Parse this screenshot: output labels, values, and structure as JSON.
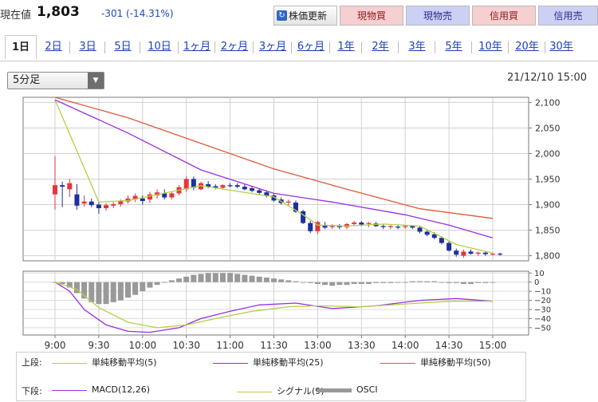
{
  "header": {
    "price_label": "現在値",
    "price": "1,803",
    "change": "-301 (-14.31%)"
  },
  "buttons": {
    "refresh": "株価更新",
    "spot_buy": "現物買",
    "spot_sell": "現物売",
    "margin_buy": "信用買",
    "margin_sell": "信用売"
  },
  "tabs": [
    "1日",
    "2日",
    "3日",
    "5日",
    "10日",
    "1ヶ月",
    "2ヶ月",
    "3ヶ月",
    "6ヶ月",
    "1年",
    "2年",
    "3年",
    "5年",
    "10年",
    "20年",
    "30年"
  ],
  "active_tab": "1日",
  "interval_select": {
    "value": "5分足"
  },
  "datetime": "21/12/10 15:00",
  "legend": {
    "upper_title": "上段:",
    "lower_title": "下段:",
    "upper_items": [
      "単純移動平均(5)",
      "単純移動平均(25)",
      "単純移動平均(50)"
    ],
    "lower_items": [
      "MACD(12,26)",
      "シグナル(9)",
      "OSCI"
    ]
  },
  "colors": {
    "sma5": "#b5d04a",
    "sma25": "#9a2fe0",
    "sma50": "#e05a3a",
    "up": "#e4353f",
    "down": "#1d2f9e",
    "osci": "#999999",
    "macd": "#9a2fe0",
    "signal": "#b5d04a",
    "btn_buy": "#f6cfd1",
    "btn_sell": "#ccd0f4"
  },
  "chart_data": [
    {
      "type": "candlestick",
      "x_ticks": [
        "9:00",
        "9:30",
        "10:00",
        "10:30",
        "11:00",
        "11:30",
        "13:00",
        "13:30",
        "14:00",
        "14:30",
        "15:00"
      ],
      "y_ticks": [
        "2,100",
        "2,050",
        "2,000",
        "1,950",
        "1,900",
        "1,850",
        "1,800"
      ],
      "ylim": [
        1790,
        2110
      ],
      "candles": [
        {
          "o": 1920,
          "h": 1995,
          "l": 1890,
          "c": 1938
        },
        {
          "o": 1938,
          "h": 1945,
          "l": 1895,
          "c": 1935
        },
        {
          "o": 1930,
          "h": 1950,
          "l": 1915,
          "c": 1942
        },
        {
          "o": 1920,
          "h": 1940,
          "l": 1890,
          "c": 1898
        },
        {
          "o": 1902,
          "h": 1918,
          "l": 1896,
          "c": 1906
        },
        {
          "o": 1906,
          "h": 1912,
          "l": 1895,
          "c": 1899
        },
        {
          "o": 1900,
          "h": 1906,
          "l": 1882,
          "c": 1893
        },
        {
          "o": 1893,
          "h": 1903,
          "l": 1888,
          "c": 1899
        },
        {
          "o": 1898,
          "h": 1905,
          "l": 1893,
          "c": 1901
        },
        {
          "o": 1901,
          "h": 1910,
          "l": 1896,
          "c": 1907
        },
        {
          "o": 1906,
          "h": 1918,
          "l": 1902,
          "c": 1912
        },
        {
          "o": 1910,
          "h": 1922,
          "l": 1905,
          "c": 1917
        },
        {
          "o": 1912,
          "h": 1918,
          "l": 1900,
          "c": 1907
        },
        {
          "o": 1910,
          "h": 1925,
          "l": 1904,
          "c": 1920
        },
        {
          "o": 1918,
          "h": 1930,
          "l": 1912,
          "c": 1924
        },
        {
          "o": 1922,
          "h": 1930,
          "l": 1910,
          "c": 1914
        },
        {
          "o": 1914,
          "h": 1925,
          "l": 1910,
          "c": 1922
        },
        {
          "o": 1922,
          "h": 1938,
          "l": 1918,
          "c": 1934
        },
        {
          "o": 1930,
          "h": 1955,
          "l": 1925,
          "c": 1950
        },
        {
          "o": 1950,
          "h": 1955,
          "l": 1928,
          "c": 1933
        },
        {
          "o": 1930,
          "h": 1945,
          "l": 1928,
          "c": 1942
        },
        {
          "o": 1940,
          "h": 1946,
          "l": 1932,
          "c": 1935
        },
        {
          "o": 1936,
          "h": 1940,
          "l": 1930,
          "c": 1933
        },
        {
          "o": 1933,
          "h": 1940,
          "l": 1930,
          "c": 1938
        },
        {
          "o": 1938,
          "h": 1942,
          "l": 1934,
          "c": 1936
        },
        {
          "o": 1938,
          "h": 1942,
          "l": 1932,
          "c": 1935
        },
        {
          "o": 1935,
          "h": 1940,
          "l": 1928,
          "c": 1930
        },
        {
          "o": 1932,
          "h": 1936,
          "l": 1924,
          "c": 1927
        },
        {
          "o": 1928,
          "h": 1932,
          "l": 1920,
          "c": 1923
        },
        {
          "o": 1924,
          "h": 1928,
          "l": 1914,
          "c": 1917
        },
        {
          "o": 1918,
          "h": 1922,
          "l": 1906,
          "c": 1908
        },
        {
          "o": 1910,
          "h": 1914,
          "l": 1900,
          "c": 1903
        },
        {
          "o": 1904,
          "h": 1910,
          "l": 1898,
          "c": 1906
        },
        {
          "o": 1904,
          "h": 1908,
          "l": 1884,
          "c": 1886
        },
        {
          "o": 1887,
          "h": 1890,
          "l": 1862,
          "c": 1864
        },
        {
          "o": 1864,
          "h": 1868,
          "l": 1844,
          "c": 1848
        },
        {
          "o": 1848,
          "h": 1868,
          "l": 1842,
          "c": 1866
        },
        {
          "o": 1860,
          "h": 1866,
          "l": 1852,
          "c": 1855
        },
        {
          "o": 1856,
          "h": 1862,
          "l": 1852,
          "c": 1858
        },
        {
          "o": 1858,
          "h": 1862,
          "l": 1852,
          "c": 1856
        },
        {
          "o": 1856,
          "h": 1864,
          "l": 1852,
          "c": 1862
        },
        {
          "o": 1862,
          "h": 1868,
          "l": 1858,
          "c": 1865
        },
        {
          "o": 1865,
          "h": 1868,
          "l": 1858,
          "c": 1861
        },
        {
          "o": 1862,
          "h": 1866,
          "l": 1856,
          "c": 1864
        },
        {
          "o": 1863,
          "h": 1866,
          "l": 1856,
          "c": 1858
        },
        {
          "o": 1858,
          "h": 1862,
          "l": 1852,
          "c": 1856
        },
        {
          "o": 1856,
          "h": 1860,
          "l": 1852,
          "c": 1858
        },
        {
          "o": 1857,
          "h": 1860,
          "l": 1852,
          "c": 1855
        },
        {
          "o": 1856,
          "h": 1860,
          "l": 1853,
          "c": 1858
        },
        {
          "o": 1858,
          "h": 1860,
          "l": 1852,
          "c": 1855
        },
        {
          "o": 1855,
          "h": 1858,
          "l": 1844,
          "c": 1847
        },
        {
          "o": 1847,
          "h": 1850,
          "l": 1838,
          "c": 1841
        },
        {
          "o": 1842,
          "h": 1846,
          "l": 1832,
          "c": 1835
        },
        {
          "o": 1835,
          "h": 1838,
          "l": 1822,
          "c": 1825
        },
        {
          "o": 1825,
          "h": 1828,
          "l": 1808,
          "c": 1810
        },
        {
          "o": 1810,
          "h": 1814,
          "l": 1798,
          "c": 1802
        },
        {
          "o": 1800,
          "h": 1812,
          "l": 1796,
          "c": 1808
        },
        {
          "o": 1808,
          "h": 1812,
          "l": 1802,
          "c": 1804
        },
        {
          "o": 1804,
          "h": 1808,
          "l": 1800,
          "c": 1806
        },
        {
          "o": 1806,
          "h": 1808,
          "l": 1800,
          "c": 1803
        },
        {
          "o": 1803,
          "h": 1806,
          "l": 1800,
          "c": 1804
        },
        {
          "o": 1804,
          "h": 1806,
          "l": 1800,
          "c": 1803
        }
      ],
      "series": [
        {
          "name": "単純移動平均(5)",
          "values": [
            [
              0,
              2105
            ],
            [
              6,
              1905
            ],
            [
              10,
              1908
            ],
            [
              20,
              1937
            ],
            [
              30,
              1915
            ],
            [
              34,
              1880
            ],
            [
              36,
              1860
            ],
            [
              40,
              1858
            ],
            [
              45,
              1862
            ],
            [
              50,
              1858
            ],
            [
              55,
              1822
            ],
            [
              60,
              1805
            ]
          ]
        },
        {
          "name": "単純移動平均(25)",
          "values": [
            [
              0,
              2105
            ],
            [
              10,
              2040
            ],
            [
              20,
              1968
            ],
            [
              30,
              1922
            ],
            [
              38,
              1905
            ],
            [
              48,
              1880
            ],
            [
              54,
              1860
            ],
            [
              60,
              1835
            ]
          ]
        },
        {
          "name": "単純移動平均(50)",
          "values": [
            [
              0,
              2110
            ],
            [
              10,
              2070
            ],
            [
              20,
              2020
            ],
            [
              30,
              1970
            ],
            [
              40,
              1930
            ],
            [
              50,
              1892
            ],
            [
              60,
              1873
            ]
          ]
        }
      ]
    },
    {
      "type": "macd",
      "y_ticks": [
        "10",
        "0",
        "-10",
        "-20",
        "-30",
        "-40",
        "-50"
      ],
      "ylim": [
        -58,
        12
      ],
      "series": [
        {
          "name": "MACD(12,26)",
          "values": [
            [
              0,
              0
            ],
            [
              2,
              -10
            ],
            [
              4,
              -30
            ],
            [
              7,
              -47
            ],
            [
              10,
              -54
            ],
            [
              13,
              -55
            ],
            [
              17,
              -50
            ],
            [
              20,
              -40
            ],
            [
              24,
              -32
            ],
            [
              28,
              -25
            ],
            [
              33,
              -23
            ],
            [
              38,
              -29
            ],
            [
              44,
              -26
            ],
            [
              50,
              -20
            ],
            [
              55,
              -18
            ],
            [
              60,
              -21
            ]
          ]
        },
        {
          "name": "シグナル(9)",
          "values": [
            [
              0,
              0
            ],
            [
              3,
              -8
            ],
            [
              6,
              -28
            ],
            [
              10,
              -44
            ],
            [
              14,
              -50
            ],
            [
              18,
              -47
            ],
            [
              22,
              -40
            ],
            [
              27,
              -32
            ],
            [
              32,
              -27
            ],
            [
              36,
              -26
            ],
            [
              42,
              -27
            ],
            [
              48,
              -24
            ],
            [
              54,
              -21
            ],
            [
              60,
              -21
            ]
          ]
        },
        {
          "name": "OSCI",
          "type": "bar",
          "values": [
            0,
            -2,
            -6,
            -12,
            -18,
            -22,
            -24,
            -24,
            -22,
            -20,
            -17,
            -14,
            -10,
            -6,
            -3,
            0,
            2,
            4,
            6,
            8,
            9,
            10,
            10,
            10,
            10,
            9,
            8,
            7,
            6,
            5,
            4,
            3,
            2,
            1,
            0,
            -1,
            -2,
            -3,
            -4,
            -3,
            -3,
            -2,
            -2,
            -2,
            -1,
            -1,
            -1,
            0,
            0,
            1,
            1,
            1,
            1,
            0,
            -1,
            -1,
            -2,
            -2,
            -1,
            -1,
            0
          ]
        }
      ]
    }
  ]
}
